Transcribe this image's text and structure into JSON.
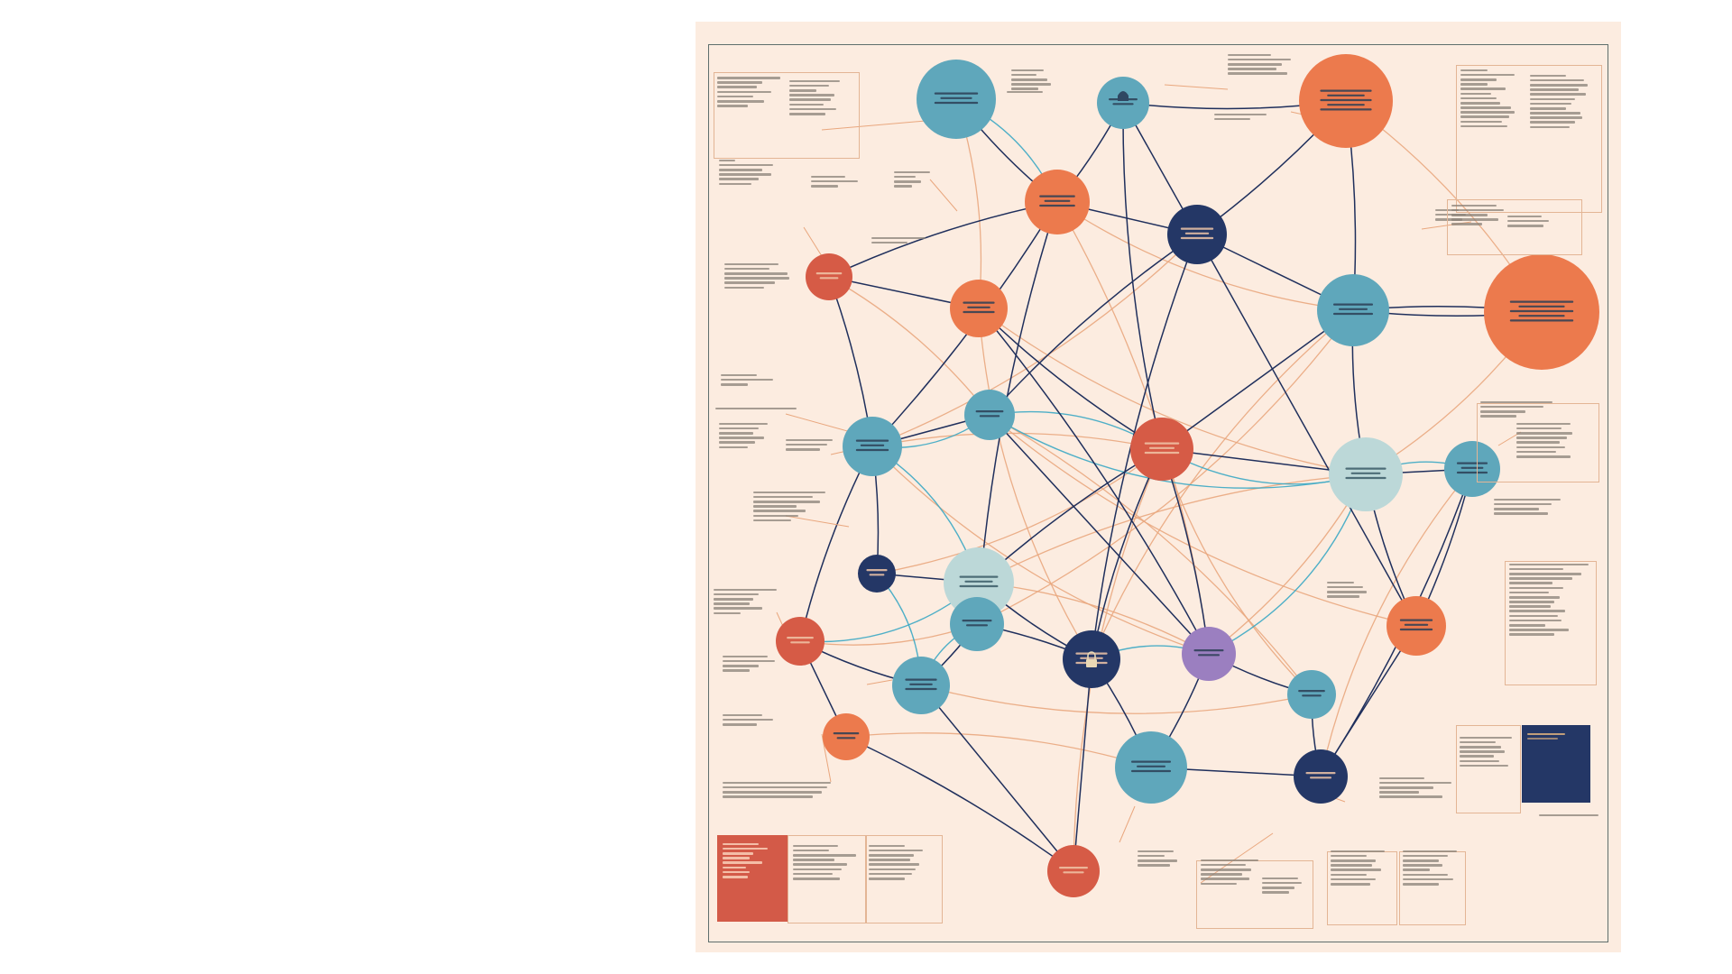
{
  "poster": {
    "title_left": "",
    "title_right": "",
    "background": "#fcece0",
    "frame_color": "#5e6e6c"
  },
  "palette": {
    "teal": "#5fa7bb",
    "orange": "#ec7a4d",
    "red": "#d65b46",
    "navy": "#243766",
    "pale_teal": "#bcd8d8",
    "purple": "#9b7fc0",
    "edge_navy": "#1f2f5c",
    "edge_orange": "#e9a77e",
    "edge_teal": "#3ba8c4"
  },
  "notes_text": "",
  "icons": {
    "lock": "lock-icon",
    "bell": "bell-icon"
  }
}
